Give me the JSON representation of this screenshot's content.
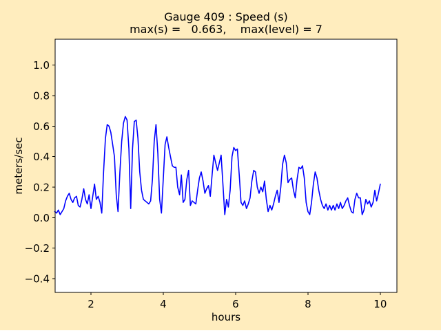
{
  "figure": {
    "background_color": "#FFEDBE",
    "title_line1": "Gauge 409 : Speed (s)",
    "title_line2": "max(s) =   0.663,    max(level) = 7"
  },
  "chart_data": {
    "type": "line",
    "title": "Gauge 409 : Speed (s)",
    "subtitle": "max(s) =   0.663,    max(level) = 7",
    "xlabel": "hours",
    "ylabel": "meters/sec",
    "x_ticks": [
      2,
      4,
      6,
      8,
      10
    ],
    "y_ticks": [
      -0.4,
      -0.2,
      0.0,
      0.2,
      0.4,
      0.6,
      0.8,
      1.0
    ],
    "xlim": [
      1.01,
      10.46
    ],
    "ylim": [
      -0.49,
      1.17
    ],
    "grid": false,
    "legend": false,
    "line_color": "#0000FF",
    "axes_facecolor": "#FFFFFF",
    "max_s": 0.663,
    "max_level": 7,
    "series": [
      {
        "name": "Speed (s)",
        "x": [
          1.0,
          1.05,
          1.1,
          1.15,
          1.2,
          1.25,
          1.3,
          1.35,
          1.4,
          1.45,
          1.5,
          1.55,
          1.6,
          1.65,
          1.7,
          1.75,
          1.8,
          1.85,
          1.9,
          1.95,
          2.0,
          2.05,
          2.1,
          2.15,
          2.2,
          2.25,
          2.3,
          2.35,
          2.4,
          2.45,
          2.5,
          2.55,
          2.6,
          2.65,
          2.7,
          2.75,
          2.8,
          2.85,
          2.9,
          2.95,
          3.0,
          3.05,
          3.1,
          3.15,
          3.2,
          3.25,
          3.3,
          3.35,
          3.4,
          3.45,
          3.5,
          3.55,
          3.6,
          3.65,
          3.7,
          3.75,
          3.8,
          3.85,
          3.9,
          3.95,
          4.0,
          4.05,
          4.1,
          4.15,
          4.2,
          4.25,
          4.3,
          4.35,
          4.4,
          4.45,
          4.5,
          4.55,
          4.6,
          4.65,
          4.7,
          4.75,
          4.8,
          4.85,
          4.9,
          4.95,
          5.0,
          5.05,
          5.1,
          5.15,
          5.2,
          5.25,
          5.3,
          5.35,
          5.4,
          5.45,
          5.5,
          5.55,
          5.6,
          5.65,
          5.7,
          5.75,
          5.8,
          5.85,
          5.9,
          5.95,
          6.0,
          6.05,
          6.1,
          6.15,
          6.2,
          6.25,
          6.3,
          6.35,
          6.4,
          6.45,
          6.5,
          6.55,
          6.6,
          6.65,
          6.7,
          6.75,
          6.8,
          6.85,
          6.9,
          6.95,
          7.0,
          7.05,
          7.1,
          7.15,
          7.2,
          7.25,
          7.3,
          7.35,
          7.4,
          7.45,
          7.5,
          7.55,
          7.6,
          7.65,
          7.7,
          7.75,
          7.8,
          7.85,
          7.9,
          7.95,
          8.0,
          8.05,
          8.1,
          8.15,
          8.2,
          8.25,
          8.3,
          8.35,
          8.4,
          8.45,
          8.5,
          8.55,
          8.6,
          8.65,
          8.7,
          8.75,
          8.8,
          8.85,
          8.9,
          8.95,
          9.0,
          9.05,
          9.1,
          9.15,
          9.2,
          9.25,
          9.3,
          9.35,
          9.4,
          9.45,
          9.5,
          9.55,
          9.6,
          9.65,
          9.7,
          9.75,
          9.8,
          9.85,
          9.9,
          9.95,
          10.0
        ],
        "y": [
          0.04,
          0.03,
          0.05,
          0.02,
          0.04,
          0.06,
          0.11,
          0.14,
          0.16,
          0.12,
          0.1,
          0.13,
          0.14,
          0.08,
          0.07,
          0.12,
          0.19,
          0.12,
          0.09,
          0.15,
          0.06,
          0.14,
          0.22,
          0.12,
          0.14,
          0.1,
          0.03,
          0.3,
          0.52,
          0.61,
          0.6,
          0.56,
          0.48,
          0.4,
          0.15,
          0.04,
          0.3,
          0.5,
          0.62,
          0.663,
          0.64,
          0.45,
          0.06,
          0.45,
          0.63,
          0.64,
          0.52,
          0.3,
          0.18,
          0.12,
          0.11,
          0.1,
          0.09,
          0.11,
          0.25,
          0.5,
          0.61,
          0.42,
          0.12,
          0.03,
          0.25,
          0.48,
          0.53,
          0.46,
          0.4,
          0.34,
          0.33,
          0.33,
          0.2,
          0.15,
          0.28,
          0.1,
          0.12,
          0.25,
          0.31,
          0.08,
          0.11,
          0.1,
          0.09,
          0.18,
          0.26,
          0.3,
          0.24,
          0.16,
          0.19,
          0.21,
          0.14,
          0.28,
          0.41,
          0.36,
          0.31,
          0.36,
          0.41,
          0.22,
          0.02,
          0.12,
          0.07,
          0.18,
          0.4,
          0.46,
          0.44,
          0.45,
          0.28,
          0.1,
          0.08,
          0.11,
          0.06,
          0.09,
          0.13,
          0.24,
          0.31,
          0.3,
          0.2,
          0.16,
          0.2,
          0.17,
          0.24,
          0.12,
          0.04,
          0.08,
          0.05,
          0.09,
          0.14,
          0.18,
          0.1,
          0.2,
          0.35,
          0.41,
          0.36,
          0.23,
          0.25,
          0.26,
          0.18,
          0.13,
          0.25,
          0.33,
          0.32,
          0.34,
          0.26,
          0.1,
          0.04,
          0.02,
          0.1,
          0.22,
          0.3,
          0.26,
          0.18,
          0.12,
          0.08,
          0.06,
          0.09,
          0.05,
          0.08,
          0.05,
          0.08,
          0.05,
          0.09,
          0.06,
          0.1,
          0.06,
          0.08,
          0.11,
          0.13,
          0.08,
          0.04,
          0.03,
          0.12,
          0.16,
          0.13,
          0.13,
          0.02,
          0.05,
          0.12,
          0.09,
          0.11,
          0.07,
          0.1,
          0.18,
          0.11,
          0.16,
          0.22
        ]
      }
    ]
  }
}
